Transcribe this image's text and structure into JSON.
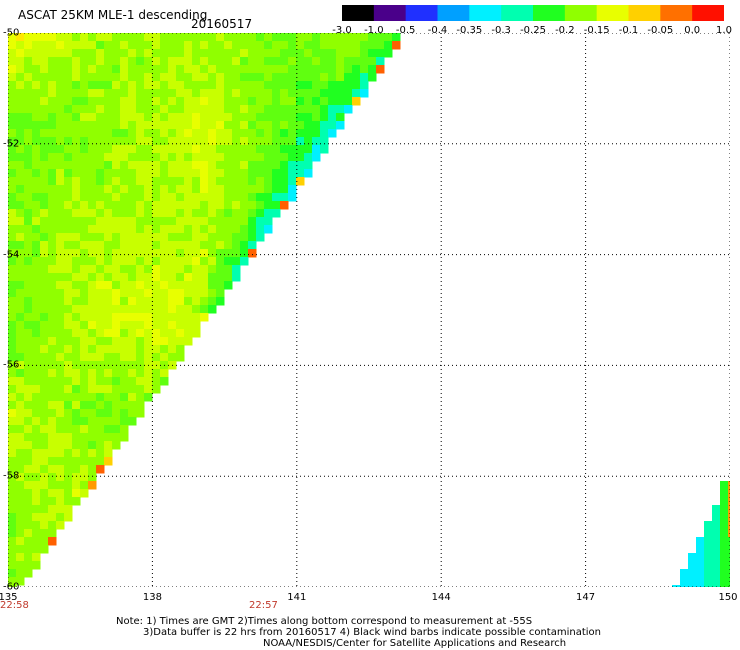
{
  "header": {
    "title": "ASCAT 25KM MLE-1 descending",
    "date": "20160517"
  },
  "colorbar": {
    "labels": [
      "-3.0",
      "-1.0",
      "-0.5",
      "-0.4",
      "-0.35",
      "-0.3",
      "-0.25",
      "-0.2",
      "-0.15",
      "-0.1",
      "-0.05",
      "0.0",
      "1.0"
    ],
    "colors": [
      "#000000",
      "#4a008a",
      "#2030ff",
      "#00a0ff",
      "#00f0ff",
      "#00ffb0",
      "#20ff20",
      "#90ff00",
      "#e8ff00",
      "#ffd000",
      "#ff7000",
      "#ff1000"
    ]
  },
  "axes": {
    "lat_labels": [
      "-50",
      "-52",
      "-54",
      "-56",
      "-58",
      "-60"
    ],
    "lon_labels": [
      "135",
      "138",
      "141",
      "144",
      "147",
      "150"
    ],
    "lat_range": [
      -60,
      -50
    ],
    "lon_range": [
      135,
      150
    ]
  },
  "times": {
    "left": "22:58",
    "mid": "22:57"
  },
  "notes": {
    "line1": "Note: 1) Times are GMT 2)Times along bottom correspond to measurement at -55S",
    "line2": "3)Data buffer is 22 hrs from 20160517 4) Black wind barbs indicate possible contamination",
    "line3": "NOAA/NESDIS/Center for Satellite Applications and Research"
  }
}
